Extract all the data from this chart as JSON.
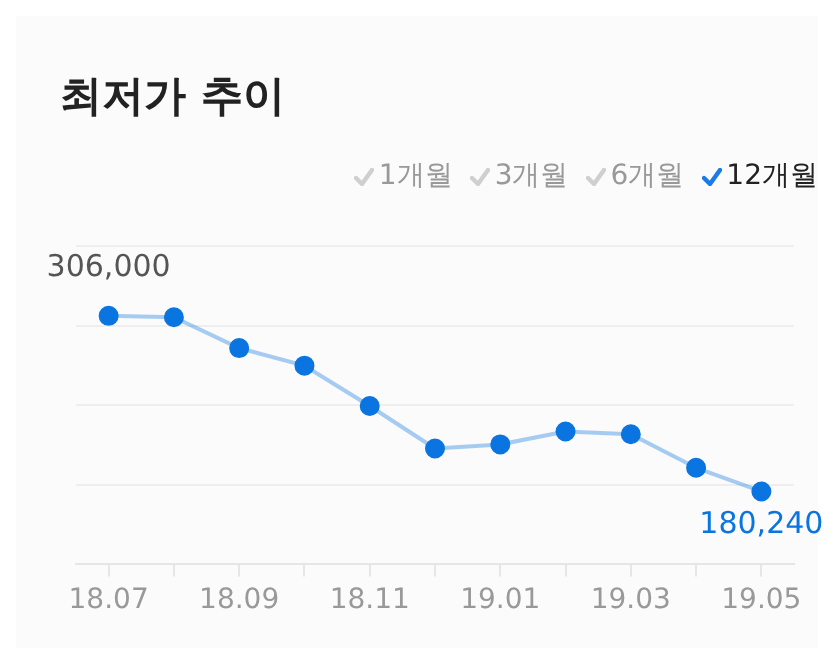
{
  "chart_data": {
    "type": "line",
    "title": "최저가 추이",
    "annotations": [
      "1개월",
      "3개월",
      "6개월",
      "12개월"
    ],
    "categories": [
      "18.07",
      null,
      "18.09",
      null,
      "18.11",
      null,
      "19.01",
      null,
      "19.03",
      null,
      "19.05"
    ],
    "series": [
      {
        "color": "#0a74e0",
        "values": [
          306000,
          305000,
          282900,
          270300,
          241400,
          211000,
          213900,
          223200,
          221200,
          197200,
          180240
        ],
        "value_labels": [
          "306,000",
          null,
          null,
          null,
          null,
          null,
          null,
          null,
          null,
          null,
          "180,240"
        ]
      }
    ],
    "ylim": [
      128000,
      356000
    ],
    "yticks": [
      {
        "value": 128000,
        "label": null
      },
      {
        "value": 185000,
        "label": null
      },
      {
        "value": 242000,
        "label": null
      },
      {
        "value": 299000,
        "label": null
      },
      {
        "value": 356000,
        "label": null
      }
    ],
    "grid": "y",
    "tick_labels": "x",
    "marker": "circle",
    "line_style": "solid"
  }
}
